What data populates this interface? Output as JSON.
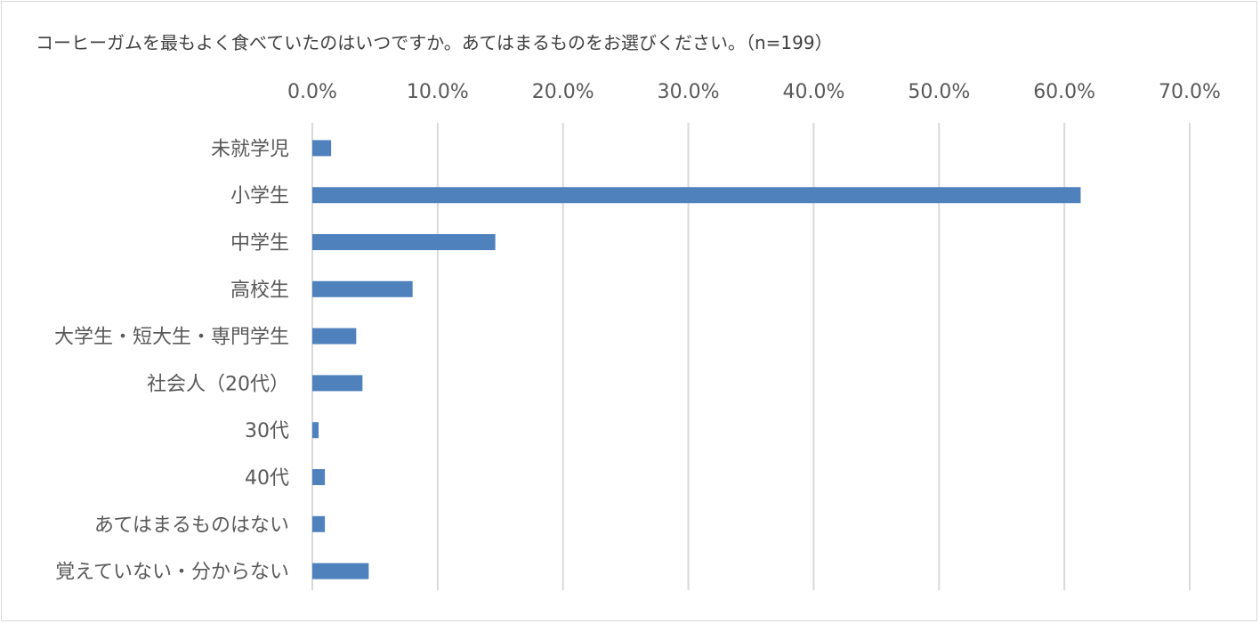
{
  "chart_data": {
    "type": "bar",
    "orientation": "horizontal",
    "title": "コーヒーガムを最もよく食べていたのはいつですか。あてはまるものをお選びください。（n=199）",
    "xlabel": "",
    "ylabel": "",
    "xlim": [
      0,
      70
    ],
    "x_ticks": [
      "0.0%",
      "10.0%",
      "20.0%",
      "30.0%",
      "40.0%",
      "50.0%",
      "60.0%",
      "70.0%"
    ],
    "x_axis_position": "top",
    "grid": true,
    "legend": "none",
    "bar_color": "#4f81bd",
    "categories": [
      "未就学児",
      "小学生",
      "中学生",
      "高校生",
      "大学生・短大生・専門学生",
      "社会人（20代）",
      "30代",
      "40代",
      "あてはまるものはない",
      "覚えていない・分からない"
    ],
    "values": [
      1.5,
      61.3,
      14.6,
      8.0,
      3.5,
      4.0,
      0.5,
      1.0,
      1.0,
      4.5
    ]
  }
}
